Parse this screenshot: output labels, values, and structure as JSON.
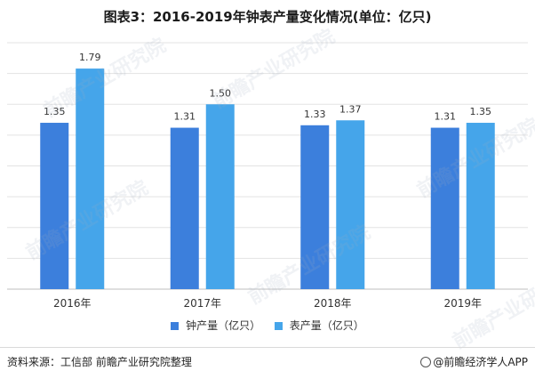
{
  "title": "图表3：2016-2019年钟表产量变化情况(单位：亿只)",
  "chart_data": {
    "type": "bar",
    "categories": [
      "2016年",
      "2017年",
      "2018年",
      "2019年"
    ],
    "series": [
      {
        "name": "钟产量（亿只）",
        "values": [
          1.35,
          1.31,
          1.33,
          1.31
        ],
        "color": "#3c7fdc"
      },
      {
        "name": "表产量（亿只）",
        "values": [
          1.79,
          1.5,
          1.37,
          1.35
        ],
        "color": "#45a5ea"
      }
    ],
    "value_labels": [
      [
        "1.35",
        "1.31",
        "1.33",
        "1.31"
      ],
      [
        "1.79",
        "1.50",
        "1.37",
        "1.35"
      ]
    ],
    "ylim": [
      0,
      2.0
    ],
    "grid": true,
    "legend_position": "bottom"
  },
  "footer": {
    "source": "资料来源：工信部 前瞻产业研究院整理",
    "brand": "@前瞻经济学人APP"
  },
  "watermark_text": "前瞻产业研究院",
  "colors": {
    "grid": "#e3e3e3",
    "axis": "#bfbfbf"
  }
}
